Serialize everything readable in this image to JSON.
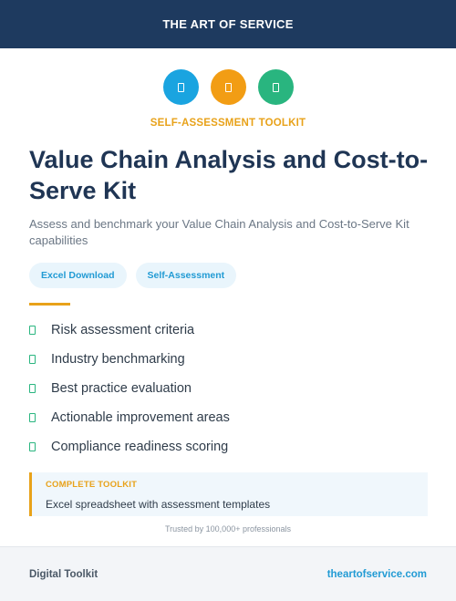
{
  "header": {
    "brand": "THE ART OF SERVICE"
  },
  "icons": [
    {
      "name": "document-icon",
      "color": "#1aa4e0"
    },
    {
      "name": "document-icon",
      "color": "#f29d14"
    },
    {
      "name": "document-icon",
      "color": "#29b57f"
    }
  ],
  "kicker": "SELF-ASSESSMENT TOOLKIT",
  "title": "Value Chain Analysis and Cost-to-Serve Kit",
  "subtitle": "Assess and benchmark your Value Chain Analysis and Cost-to-Serve Kit capabilities",
  "tags": [
    "Excel Download",
    "Self-Assessment"
  ],
  "features": [
    "Risk assessment criteria",
    "Industry benchmarking",
    "Best practice evaluation",
    "Actionable improvement areas",
    "Compliance readiness scoring"
  ],
  "callout": {
    "label": "COMPLETE TOOLKIT",
    "text": "Excel spreadsheet with assessment templates"
  },
  "trusted": "Trusted by 100,000+ professionals",
  "footer": {
    "left": "Digital Toolkit",
    "right": "theartofservice.com"
  }
}
